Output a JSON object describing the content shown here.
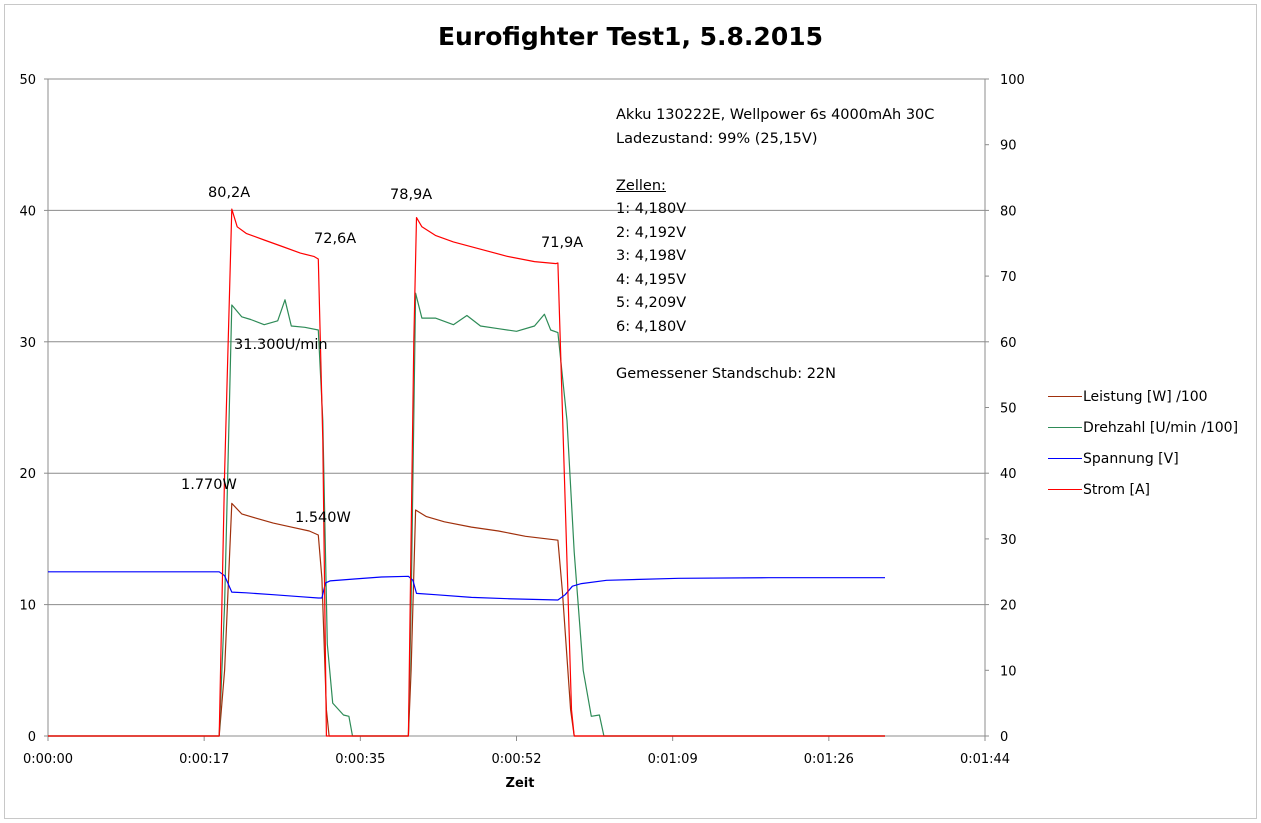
{
  "chart_data": {
    "type": "line",
    "title": "Eurofighter Test1, 5.8.2015",
    "xlabel": "Zeit",
    "x_unit": "seconds",
    "xlim": [
      0,
      104
    ],
    "x_tick_labels": [
      "0:00:00",
      "0:00:17",
      "0:00:35",
      "0:00:52",
      "0:01:09",
      "0:01:26",
      "0:01:44"
    ],
    "y_left": {
      "ylim": [
        0,
        50
      ],
      "ticks": [
        "0",
        "10",
        "20",
        "30",
        "40",
        "50"
      ]
    },
    "y_right": {
      "ylim": [
        0,
        100
      ],
      "ticks": [
        "0",
        "10",
        "20",
        "30",
        "40",
        "50",
        "60",
        "70",
        "80",
        "90",
        "100"
      ]
    },
    "grid": "horizontal",
    "legend_position": "right",
    "series": [
      {
        "name": "Leistung [W] /100",
        "color": "#a0300c",
        "axis": "left",
        "x": [
          0,
          19.0,
          19.6,
          20.4,
          21.5,
          23,
          25,
          27,
          29,
          30.0,
          30.4,
          30.9,
          31.2,
          40.0,
          40.3,
          40.8,
          42,
          44,
          47,
          50,
          53,
          56.6,
          57.1,
          58.0,
          58.4,
          92.9
        ],
        "y": [
          0,
          0,
          5,
          17.7,
          16.9,
          16.6,
          16.2,
          15.9,
          15.6,
          15.3,
          12,
          2,
          0,
          0,
          5,
          17.2,
          16.7,
          16.3,
          15.9,
          15.6,
          15.2,
          14.9,
          11,
          2,
          0,
          0
        ]
      },
      {
        "name": "Drehzahl [U/min /100]",
        "color": "#2e8b57",
        "axis": "left",
        "x": [
          0,
          19.0,
          19.6,
          20.4,
          21.5,
          22.5,
          24,
          25.5,
          26.3,
          27,
          28.5,
          30.0,
          30.5,
          31.0,
          31.6,
          32.8,
          33.4,
          33.8,
          40.0,
          40.3,
          40.8,
          41.5,
          43,
          45,
          46.5,
          48,
          50,
          52,
          54,
          55.1,
          55.8,
          56.6,
          57.6,
          58.4,
          59.4,
          60.3,
          61.2,
          61.7,
          61.9,
          92.9
        ],
        "y": [
          0,
          0,
          10,
          32.8,
          31.9,
          31.7,
          31.3,
          31.6,
          33.2,
          31.2,
          31.1,
          30.9,
          24,
          7,
          2.5,
          1.6,
          1.5,
          0,
          0,
          10,
          33.7,
          31.8,
          31.8,
          31.3,
          32,
          31.2,
          31.0,
          30.8,
          31.2,
          32.1,
          30.9,
          30.7,
          24,
          14,
          5,
          1.5,
          1.6,
          0,
          0,
          0
        ]
      },
      {
        "name": "Spannung [V]",
        "color": "#0000ff",
        "axis": "right",
        "x": [
          0,
          19.0,
          19.6,
          20.4,
          22,
          25,
          28,
          30.0,
          30.4,
          30.8,
          31.3,
          34,
          37,
          40.0,
          40.5,
          40.9,
          43,
          47,
          51,
          56.6,
          57.4,
          58.2,
          59.2,
          62,
          70,
          80,
          92.9
        ],
        "y": [
          25.0,
          25.0,
          24.4,
          21.9,
          21.8,
          21.5,
          21.2,
          21.0,
          21.0,
          23.3,
          23.6,
          23.9,
          24.2,
          24.3,
          23.7,
          21.7,
          21.5,
          21.1,
          20.9,
          20.7,
          21.5,
          22.8,
          23.2,
          23.7,
          24.0,
          24.1,
          24.1
        ]
      },
      {
        "name": "Strom [A]",
        "color": "#ff0000",
        "axis": "right",
        "x": [
          0,
          19.0,
          19.6,
          20.4,
          21,
          22,
          24,
          26,
          28,
          29.5,
          30.0,
          30.5,
          30.9,
          40.0,
          40.6,
          40.9,
          41.5,
          43,
          45,
          48,
          51,
          54,
          56.4,
          56.6,
          57.3,
          58.1,
          58.4,
          92.9
        ],
        "y": [
          0,
          0,
          40,
          80.2,
          77.5,
          76.5,
          75.5,
          74.5,
          73.5,
          73.0,
          72.6,
          45,
          0,
          0,
          60,
          78.9,
          77.5,
          76.2,
          75.2,
          74.1,
          73.0,
          72.2,
          71.9,
          72.0,
          40,
          4,
          0,
          0
        ]
      }
    ],
    "annotations": {
      "peak_current_1": "80,2A",
      "end_current_1": "72,6A",
      "peak_current_2": "78,9A",
      "end_current_2": "71,9A",
      "rpm": "31.300U/min",
      "power_peak_1": "1.770W",
      "power_end_1": "1.540W"
    },
    "info": {
      "battery": "Akku 130222E, Wellpower 6s 4000mAh 30C",
      "charge": "Ladezustand: 99% (25,15V)",
      "cells_heading": "Zellen:",
      "cells": [
        "1:  4,180V",
        "2:  4,192V",
        "3:  4,198V",
        "4:  4,195V",
        "5:  4,209V",
        "6:  4,180V"
      ],
      "thrust": "Gemessener Standschub: 22N"
    }
  }
}
